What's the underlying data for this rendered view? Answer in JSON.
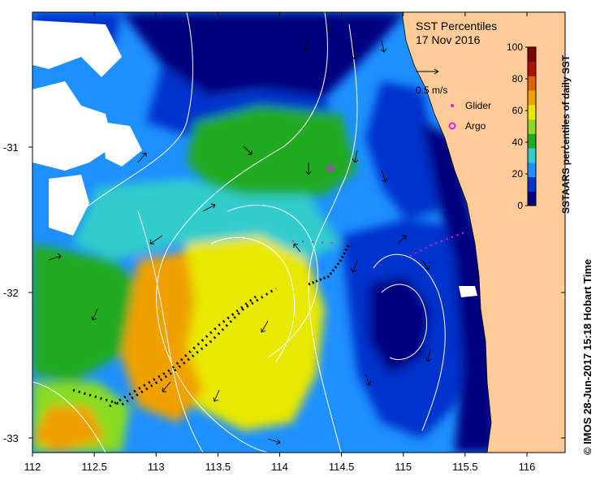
{
  "title": "SST Percentiles",
  "date": "17 Nov 2016",
  "vector_scale_label": "0.5 m/s",
  "legend": {
    "glider_label": "Glider",
    "argo_label": "Argo",
    "glider_color": "#e020e0",
    "argo_color": "#e020e0"
  },
  "colorbar": {
    "label": "SSTAARS percentiles of daily SST",
    "ticks": [
      "0",
      "20",
      "40",
      "60",
      "80",
      "100"
    ],
    "colors": [
      "#00007f",
      "#0033cc",
      "#1e90ff",
      "#33cccc",
      "#22aa22",
      "#88dd22",
      "#e8e800",
      "#f0a000",
      "#e06000",
      "#b01000",
      "#7f0000"
    ]
  },
  "x_axis": {
    "ticks": [
      "112",
      "112.5",
      "113",
      "113.5",
      "114",
      "114.5",
      "115",
      "115.5",
      "116"
    ],
    "range": [
      112,
      116.3
    ]
  },
  "y_axis": {
    "ticks": [
      "-31",
      "-32",
      "-33"
    ],
    "range": [
      -33.1,
      -30.1
    ]
  },
  "credit": "© IMOS 28-Jun-2017 15:18 Hobart Time",
  "colors": {
    "land": "#ffcc99",
    "deep_blue": "#00007f",
    "ocean_blue": "#0033cc",
    "light_blue": "#1e90ff",
    "cyan": "#33cccc",
    "green": "#22aa22",
    "yellow": "#e8e800",
    "orange": "#f0a000"
  }
}
